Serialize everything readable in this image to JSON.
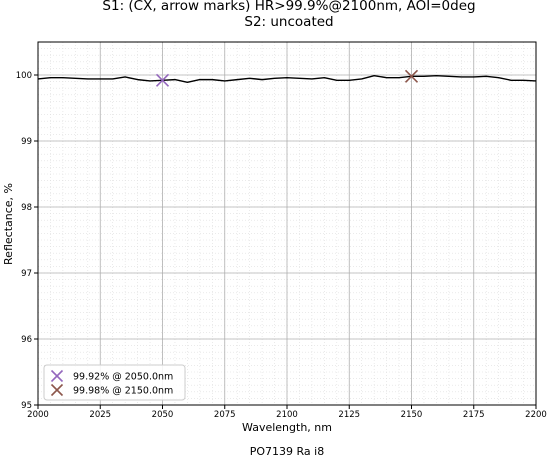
{
  "chart_data": {
    "type": "line",
    "title_line1": "S1: (CX, arrow marks) HR>99.9%@2100nm, AOI=0deg",
    "title_line2": "S2: uncoated",
    "xlabel": "Wavelength, nm",
    "ylabel": "Reflectance, %",
    "footer": "PO7139 Ra i8",
    "xlim": [
      2000,
      2200
    ],
    "ylim": [
      95,
      100.5
    ],
    "xticks": [
      2000,
      2025,
      2050,
      2075,
      2100,
      2125,
      2150,
      2175,
      2200
    ],
    "yticks": [
      95,
      96,
      97,
      98,
      99,
      100
    ],
    "grid": true,
    "legend_position": "bottom-left",
    "series": [
      {
        "color": "#000000",
        "x": [
          2000,
          2005,
          2010,
          2015,
          2020,
          2025,
          2030,
          2035,
          2040,
          2045,
          2050,
          2055,
          2060,
          2065,
          2070,
          2075,
          2080,
          2085,
          2090,
          2095,
          2100,
          2105,
          2110,
          2115,
          2120,
          2125,
          2130,
          2135,
          2140,
          2145,
          2150,
          2155,
          2160,
          2165,
          2170,
          2175,
          2180,
          2185,
          2190,
          2195,
          2200
        ],
        "y": [
          99.94,
          99.96,
          99.96,
          99.95,
          99.94,
          99.94,
          99.94,
          99.97,
          99.93,
          99.91,
          99.92,
          99.93,
          99.89,
          99.93,
          99.93,
          99.91,
          99.93,
          99.95,
          99.93,
          99.95,
          99.96,
          99.95,
          99.94,
          99.96,
          99.92,
          99.92,
          99.94,
          99.99,
          99.96,
          99.96,
          99.98,
          99.98,
          99.99,
          99.98,
          99.97,
          99.97,
          99.98,
          99.96,
          99.92,
          99.92,
          99.91
        ]
      }
    ],
    "markers": [
      {
        "x": 2050,
        "y": 99.92,
        "label": "99.92% @ 2050.0nm",
        "color": "#9467bd"
      },
      {
        "x": 2150,
        "y": 99.98,
        "label": "99.98% @ 2150.0nm",
        "color": "#8c564b"
      }
    ]
  }
}
